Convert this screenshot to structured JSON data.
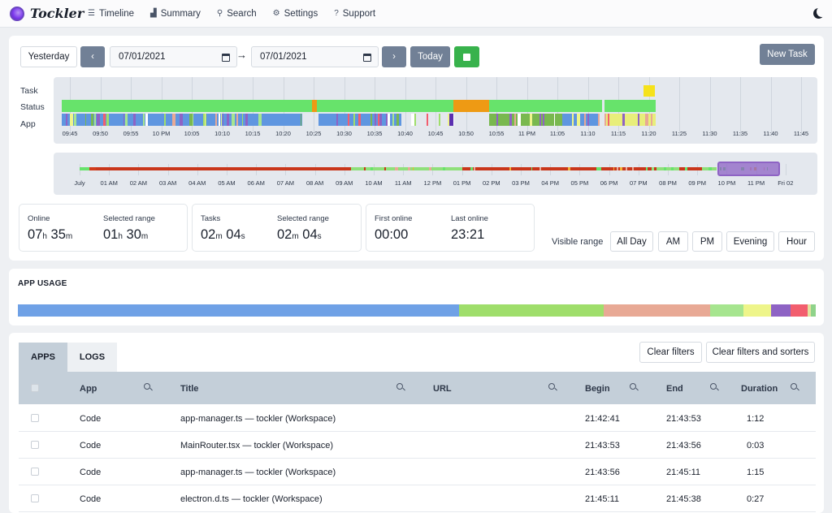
{
  "nav": {
    "brand": "Tockler",
    "items": [
      {
        "label": "Timeline",
        "icon": "list-icon"
      },
      {
        "label": "Summary",
        "icon": "bar-chart-icon"
      },
      {
        "label": "Search",
        "icon": "search-icon"
      },
      {
        "label": "Settings",
        "icon": "gear-icon"
      },
      {
        "label": "Support",
        "icon": "question-circle-icon"
      }
    ],
    "theme_icon": "moon-icon"
  },
  "toolbar": {
    "yesterday": "Yesterday",
    "prev_icon": "chevron-left-icon",
    "from_date": "07/01/2021",
    "to_date": "07/01/2021",
    "next_icon": "chevron-right-icon",
    "today": "Today",
    "stop_icon": "stop-icon",
    "new_task": "New Task"
  },
  "timeline": {
    "row_labels": [
      "Task",
      "Status",
      "App"
    ],
    "ticks": [
      "09:45",
      "09:50",
      "09:55",
      "10 PM",
      "10:05",
      "10:10",
      "10:15",
      "10:20",
      "10:25",
      "10:30",
      "10:35",
      "10:40",
      "10:45",
      "10:50",
      "10:55",
      "11 PM",
      "11:05",
      "11:10",
      "11:15",
      "11:20",
      "11:25",
      "11:30",
      "11:35",
      "11:40",
      "11:45"
    ]
  },
  "overview": {
    "labels": [
      "July",
      "01 AM",
      "02 AM",
      "03 AM",
      "04 AM",
      "05 AM",
      "06 AM",
      "07 AM",
      "08 AM",
      "09 AM",
      "10 AM",
      "11 AM",
      "12 PM",
      "01 PM",
      "02 PM",
      "03 PM",
      "04 PM",
      "05 PM",
      "06 PM",
      "07 PM",
      "08 PM",
      "09 PM",
      "10 PM",
      "11 PM",
      "Fri 02"
    ]
  },
  "stats": {
    "online_label": "Online",
    "online_h": "07",
    "online_m": "35",
    "sel1_label": "Selected range",
    "sel1_h": "01",
    "sel1_m": "30",
    "tasks_label": "Tasks",
    "tasks_m": "02",
    "tasks_s": "04",
    "sel2_label": "Selected range",
    "sel2_m": "02",
    "sel2_s": "04",
    "first_label": "First online",
    "first_val": "00:00",
    "last_label": "Last online",
    "last_val": "23:21",
    "unit_h": "h",
    "unit_m": "m",
    "unit_s": "s"
  },
  "visible_range": {
    "label": "Visible range",
    "options": [
      "All Day",
      "AM",
      "PM",
      "Evening",
      "Hour"
    ]
  },
  "app_usage": {
    "title": "APP USAGE",
    "segments": [
      {
        "share": 0.553,
        "color": "#6fa1e6"
      },
      {
        "share": 0.181,
        "color": "#9fde6b"
      },
      {
        "share": 0.134,
        "color": "#e8a995"
      },
      {
        "share": 0.041,
        "color": "#a6e58f"
      },
      {
        "share": 0.035,
        "color": "#eef58a"
      },
      {
        "share": 0.024,
        "color": "#8e63c4"
      },
      {
        "share": 0.022,
        "color": "#f25e6e"
      },
      {
        "share": 0.004,
        "color": "#e2e2a0"
      },
      {
        "share": 0.006,
        "color": "#8fd38a"
      }
    ]
  },
  "table": {
    "tabs": [
      "APPS",
      "LOGS"
    ],
    "clear_filters": "Clear filters",
    "clear_all": "Clear filters and sorters",
    "columns": [
      "App",
      "Title",
      "URL",
      "Begin",
      "End",
      "Duration"
    ],
    "rows": [
      {
        "app": "Code",
        "title": "app-manager.ts — tockler (Workspace)",
        "url": "",
        "begin": "21:42:41",
        "end": "21:43:53",
        "duration": "1:12"
      },
      {
        "app": "Code",
        "title": "MainRouter.tsx — tockler (Workspace)",
        "url": "",
        "begin": "21:43:53",
        "end": "21:43:56",
        "duration": "0:03"
      },
      {
        "app": "Code",
        "title": "app-manager.ts — tockler (Workspace)",
        "url": "",
        "begin": "21:43:56",
        "end": "21:45:11",
        "duration": "1:15"
      },
      {
        "app": "Code",
        "title": "electron.d.ts — tockler (Workspace)",
        "url": "",
        "begin": "21:45:11",
        "end": "21:45:38",
        "duration": "0:27"
      }
    ]
  }
}
